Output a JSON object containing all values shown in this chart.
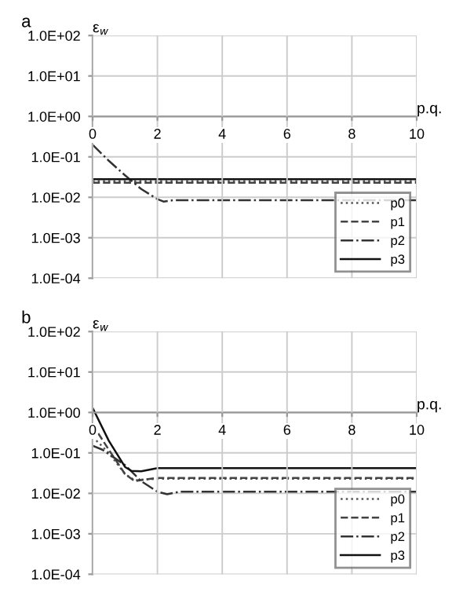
{
  "chart_data": [
    {
      "type": "line",
      "title": "a",
      "xlabel": "p.q.",
      "ylabel": "ε$_{w}$",
      "log": "y",
      "grid": true,
      "legend": "bottom right",
      "marker": "none",
      "xlim": [
        0,
        10
      ],
      "xticks": [
        0,
        2,
        4,
        6,
        8,
        10
      ],
      "ylim": [
        0.0001,
        100
      ],
      "yticks": [
        {
          "value": 0.0001,
          "label": "1.0E-04"
        },
        {
          "value": 0.001,
          "label": "1.0E-03"
        },
        {
          "value": 0.01,
          "label": "1.0E-02"
        },
        {
          "value": 0.1,
          "label": "1.0E-01"
        },
        {
          "value": 1,
          "label": "1.0E+00"
        },
        {
          "value": 10,
          "label": "1.0E+01"
        },
        {
          "value": 100,
          "label": "1.0E+02"
        }
      ],
      "series": [
        {
          "name": "p0",
          "color": "#555555",
          "line_style": "dotted",
          "x": [
            0,
            10
          ],
          "values": [
            0.025,
            0.025
          ]
        },
        {
          "name": "p1",
          "color": "#444444",
          "line_style": "dashed",
          "x": [
            0,
            10
          ],
          "values": [
            0.023,
            0.023
          ]
        },
        {
          "name": "p2",
          "color": "#333333",
          "line_style": "dashdot",
          "x": [
            0,
            0.5,
            1,
            1.5,
            2,
            2.2,
            2.5,
            10
          ],
          "values": [
            0.2,
            0.08,
            0.035,
            0.016,
            0.009,
            0.0078,
            0.0085,
            0.0085
          ]
        },
        {
          "name": "p3",
          "color": "#111111",
          "line_style": "solid",
          "x": [
            0,
            10
          ],
          "values": [
            0.028,
            0.028
          ]
        }
      ]
    },
    {
      "type": "line",
      "title": "b",
      "xlabel": "p.q.",
      "ylabel": "ε$_{w}$",
      "log": "y",
      "grid": true,
      "legend": "bottom right",
      "marker": "none",
      "xlim": [
        0,
        10
      ],
      "xticks": [
        0,
        2,
        4,
        6,
        8,
        10
      ],
      "ylim": [
        0.0001,
        100
      ],
      "yticks": [
        {
          "value": 0.0001,
          "label": "1.0E-04"
        },
        {
          "value": 0.001,
          "label": "1.0E-03"
        },
        {
          "value": 0.01,
          "label": "1.0E-02"
        },
        {
          "value": 0.1,
          "label": "1.0E-01"
        },
        {
          "value": 1,
          "label": "1.0E+00"
        },
        {
          "value": 10,
          "label": "1.0E+01"
        },
        {
          "value": 100,
          "label": "1.0E+02"
        }
      ],
      "series": [
        {
          "name": "p0",
          "color": "#555555",
          "line_style": "dotted",
          "x": [
            0,
            0.5,
            1,
            1.3,
            1.6,
            2,
            10
          ],
          "values": [
            0.25,
            0.1,
            0.03,
            0.021,
            0.022,
            0.023,
            0.023
          ]
        },
        {
          "name": "p1",
          "color": "#444444",
          "line_style": "dashed",
          "x": [
            0,
            0.5,
            1,
            1.3,
            1.6,
            2,
            10
          ],
          "values": [
            0.5,
            0.12,
            0.03,
            0.02,
            0.022,
            0.024,
            0.024
          ]
        },
        {
          "name": "p2",
          "color": "#333333",
          "line_style": "dashdot",
          "x": [
            0,
            0.3,
            1,
            1.5,
            2,
            2.3,
            2.7,
            10
          ],
          "values": [
            0.15,
            0.12,
            0.05,
            0.02,
            0.011,
            0.0095,
            0.011,
            0.011
          ]
        },
        {
          "name": "p3",
          "color": "#111111",
          "line_style": "solid",
          "x": [
            0,
            0.5,
            1,
            1.2,
            1.5,
            2,
            10
          ],
          "values": [
            1.3,
            0.2,
            0.045,
            0.036,
            0.035,
            0.042,
            0.042
          ]
        }
      ]
    }
  ]
}
